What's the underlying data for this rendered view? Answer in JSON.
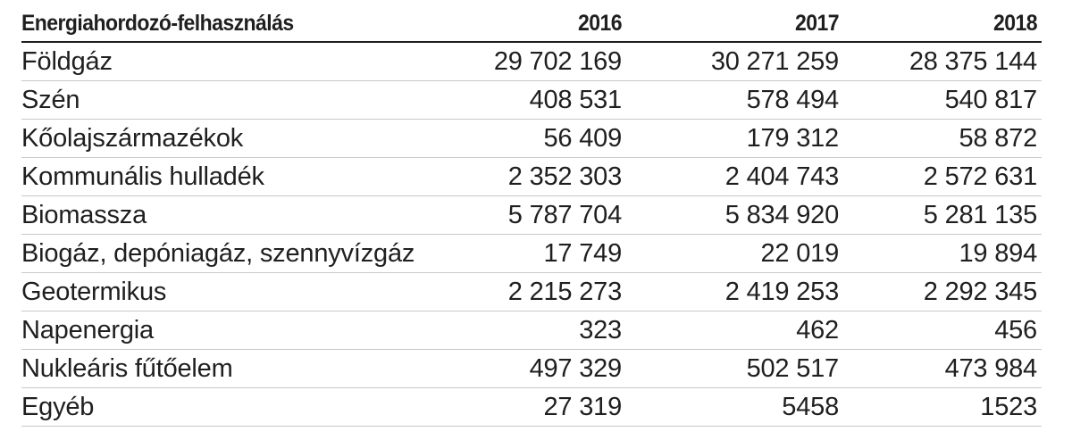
{
  "table": {
    "header": {
      "label": "Energiahordozó-felhasználás",
      "years": [
        "2016",
        "2017",
        "2018"
      ]
    },
    "rows": [
      {
        "label": "Földgáz",
        "values": [
          "29 702 169",
          "30 271 259",
          "28 375 144"
        ]
      },
      {
        "label": "Szén",
        "values": [
          "408 531",
          "578 494",
          "540 817"
        ]
      },
      {
        "label": "Kőolajszármazékok",
        "values": [
          "56 409",
          "179 312",
          "58 872"
        ]
      },
      {
        "label": "Kommunális hulladék",
        "values": [
          "2 352 303",
          "2 404 743",
          "2 572 631"
        ]
      },
      {
        "label": "Biomassza",
        "values": [
          "5 787 704",
          "5 834 920",
          "5 281 135"
        ]
      },
      {
        "label": "Biogáz, depóniagáz, szennyvízgáz",
        "values": [
          "17 749",
          "22 019",
          "19 894"
        ]
      },
      {
        "label": "Geotermikus",
        "values": [
          "2 215 273",
          "2 419 253",
          "2 292 345"
        ]
      },
      {
        "label": "Napenergia",
        "values": [
          "323",
          "462",
          "456"
        ]
      },
      {
        "label": "Nukleáris fűtőelem",
        "values": [
          "497 329",
          "502 517",
          "473 984"
        ]
      },
      {
        "label": "Egyéb",
        "values": [
          "27 319",
          "5458",
          "1523"
        ]
      }
    ]
  }
}
